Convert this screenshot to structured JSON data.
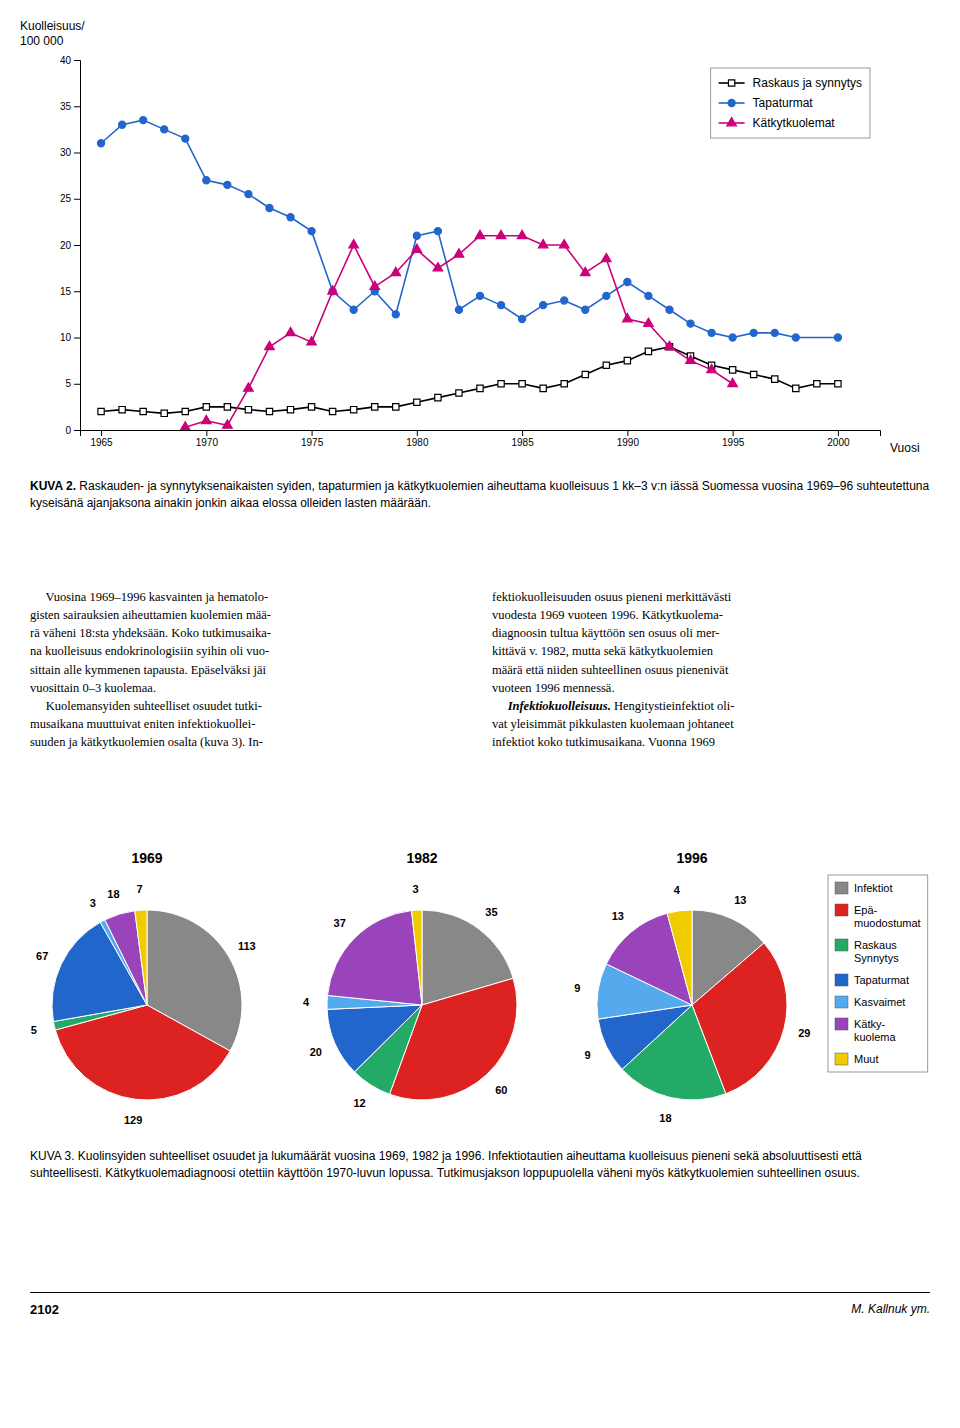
{
  "chart_data": [
    {
      "type": "line",
      "ylabel": [
        "Kuolleisuus/",
        "100 000"
      ],
      "xlabel": "Vuosi",
      "caption_label": "KUVA 2.",
      "caption": " Raskauden- ja synnytyksenaikaisten syiden, tapaturmien ja kätkytkuolemien aiheuttama kuolleisuus 1 kk–3 v:n iässä Suomessa vuosina 1969–96 suhteutettuna kyseisänä ajanjaksona ainakin jonkin aikaa elossa olleiden lasten määrään.",
      "series": [
        {
          "name": "Raskaus ja synnytys",
          "color": "#000000",
          "marker": "square-open",
          "x": [
            1965,
            1966,
            1967,
            1968,
            1969,
            1970,
            1971,
            1972,
            1973,
            1974,
            1975,
            1976,
            1977,
            1978,
            1979,
            1980,
            1981,
            1982,
            1983,
            1984,
            1985,
            1986,
            1987,
            1988,
            1989,
            1990,
            1991,
            1992,
            1993,
            1994,
            1995,
            1996,
            1997,
            1998,
            1999,
            2000
          ],
          "values": [
            2.0,
            2.2,
            2.0,
            1.8,
            2.0,
            2.5,
            2.5,
            2.2,
            2.0,
            2.2,
            2.5,
            2.0,
            2.2,
            2.5,
            2.5,
            3.0,
            3.5,
            4.0,
            4.5,
            5.0,
            5.0,
            4.5,
            5.0,
            6.0,
            7.0,
            7.5,
            8.5,
            9.0,
            8.0,
            7.0,
            6.5,
            6.0,
            5.5,
            4.5,
            5.0,
            5.0
          ]
        },
        {
          "name": "Tapaturmat",
          "color": "#2266cc",
          "marker": "circle",
          "x": [
            1965,
            1966,
            1967,
            1968,
            1969,
            1970,
            1971,
            1972,
            1973,
            1974,
            1975,
            1976,
            1977,
            1978,
            1979,
            1980,
            1981,
            1982,
            1983,
            1984,
            1985,
            1986,
            1987,
            1988,
            1989,
            1990,
            1991,
            1992,
            1993,
            1994,
            1995,
            1996,
            1997,
            1998,
            2000
          ],
          "values": [
            31.0,
            33.0,
            33.5,
            32.5,
            31.5,
            27.0,
            26.5,
            25.5,
            24.0,
            23.0,
            21.5,
            15.0,
            13.0,
            15.0,
            12.5,
            21.0,
            21.5,
            13.0,
            14.5,
            13.5,
            12.0,
            13.5,
            14.0,
            13.0,
            14.5,
            16.0,
            14.5,
            13.0,
            11.5,
            10.5,
            10.0,
            10.5,
            10.5,
            10.0,
            10.0
          ]
        },
        {
          "name": "Kätkytkuolemat",
          "color": "#cc007a",
          "marker": "triangle",
          "x": [
            1969,
            1970,
            1971,
            1972,
            1973,
            1974,
            1975,
            1976,
            1977,
            1978,
            1979,
            1980,
            1981,
            1982,
            1983,
            1984,
            1985,
            1986,
            1987,
            1988,
            1989,
            1990,
            1991,
            1992,
            1993,
            1994,
            1995
          ],
          "values": [
            0.3,
            1.0,
            0.5,
            4.5,
            9.0,
            10.5,
            9.5,
            15.0,
            20.0,
            15.5,
            17.0,
            19.5,
            17.5,
            19.0,
            21.0,
            21.0,
            21.0,
            20.0,
            20.0,
            17.0,
            18.5,
            12.0,
            11.5,
            9.0,
            7.5,
            6.5,
            5.0
          ]
        }
      ],
      "xlim": [
        1964,
        2002
      ],
      "xticks": [
        1965,
        1970,
        1975,
        1980,
        1985,
        1990,
        1995,
        2000
      ],
      "ylim": [
        0,
        40
      ],
      "yticks": [
        0,
        5,
        10,
        15,
        20,
        25,
        30,
        35,
        40
      ],
      "grid": false,
      "legend": "upper right"
    },
    {
      "type": "pie",
      "caption": "KUVA 3. Kuolinsyiden suhteelliset osuudet ja lukumäärät vuosina 1969, 1982 ja 1996. Infektiotautien aiheuttama kuolleisuus pieneni sekä absoluuttisesti että suhteellisesti. Kätkytkuolemadiagnoosi otettiin käyttöön 1970-luvun lopussa. Tutkimusjakson loppupuolella väheni myös kätkytkuolemien suhteellinen osuus.",
      "categories": [
        "Infektiot",
        "Epä-\nmuodostumat",
        "Raskaus\nSynnytys",
        "Tapaturmat",
        "Kasvaimet",
        "Kätky-\nkuolema",
        "Muut"
      ],
      "colors": [
        "#888888",
        "#dd2222",
        "#22aa66",
        "#2266cc",
        "#55aaee",
        "#9944bb",
        "#eecc00"
      ],
      "series": [
        {
          "name": "1969",
          "values": [
            113,
            129,
            5,
            67,
            3,
            18,
            7
          ]
        },
        {
          "name": "1982",
          "values": [
            35,
            60,
            12,
            20,
            4,
            37,
            3
          ]
        },
        {
          "name": "1996",
          "values": [
            13,
            29,
            18,
            9,
            9,
            13,
            4
          ]
        }
      ],
      "data_labels": true,
      "legend": "right"
    }
  ],
  "page": {
    "body_left": "     Vuosina 1969–1996 kasvainten ja hematolo-\ngisten sairauksien aiheuttamien kuolemien mää-\nrä väheni 18:sta yhdeksään. Koko tutkimusaika-\nna kuolleisuus endokrinologisiin syihin oli vuo-\nsittain alle kymmenen tapausta. Epäselväksi jäi\nvuosittain 0–3 kuolemaa.\n     Kuolemansyiden suhteelliset osuudet tutki-\nmusaikana muuttuivat eniten infektiokuollei-\nsuuden ja kätkytkuolemien osalta (kuva 3). In-",
    "body_right": [
      "fektiokuolleisuuden osuus pieneni merkittävästi\nvuodesta 1969 vuoteen 1996. Kätkytkuolema-\ndiagnoosin tultua käyttöön sen osuus oli mer-\nkittävä v. 1982, mutta sekä kätkytkuolemien\nmäärä että niiden suhteellinen osuus pienenivät\nvuoteen 1996 mennessä.\n     ",
      "Infektiokuolleisuus.",
      " Hengitystieinfektiot oli-\nvat yleisimmät pikkulasten kuolemaan johtaneet\ninfektiot koko tutkimusaikana. Vuonna 1969"
    ],
    "page_number": "2102",
    "author": "M. Kallnuk ym."
  }
}
